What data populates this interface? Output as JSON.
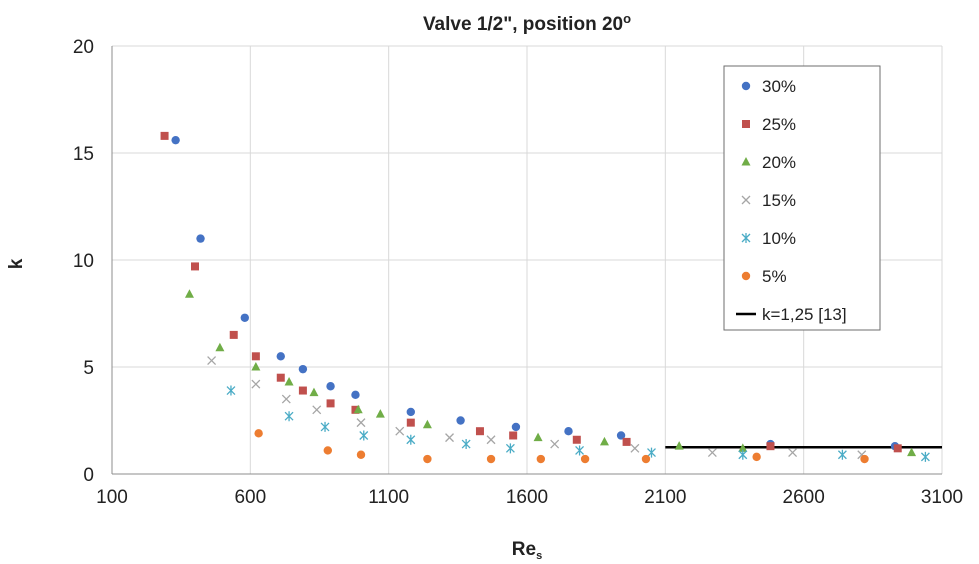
{
  "chart_data": {
    "type": "scatter",
    "title": "Valve 1/2\", position 20",
    "title_superscript": "o",
    "xlabel": "Re",
    "xlabel_subscript": "s",
    "ylabel": "k",
    "xlim": [
      100,
      3100
    ],
    "ylim": [
      0,
      20
    ],
    "xticks": [
      100,
      600,
      1100,
      1600,
      2100,
      2600,
      3100
    ],
    "yticks": [
      0,
      5,
      10,
      15,
      20
    ],
    "grid": true,
    "legend_position": "top-right",
    "series": [
      {
        "name": "30%",
        "marker": "circle",
        "color": "#4472c4",
        "points": [
          [
            330,
            15.6
          ],
          [
            420,
            11.0
          ],
          [
            580,
            7.3
          ],
          [
            710,
            5.5
          ],
          [
            790,
            4.9
          ],
          [
            890,
            4.1
          ],
          [
            980,
            3.7
          ],
          [
            1180,
            2.9
          ],
          [
            1360,
            2.5
          ],
          [
            1560,
            2.2
          ],
          [
            1750,
            2.0
          ],
          [
            1940,
            1.8
          ],
          [
            2480,
            1.4
          ],
          [
            2930,
            1.3
          ]
        ]
      },
      {
        "name": "25%",
        "marker": "square",
        "color": "#c0504d",
        "points": [
          [
            290,
            15.8
          ],
          [
            400,
            9.7
          ],
          [
            540,
            6.5
          ],
          [
            620,
            5.5
          ],
          [
            710,
            4.5
          ],
          [
            790,
            3.9
          ],
          [
            890,
            3.3
          ],
          [
            980,
            3.0
          ],
          [
            1180,
            2.4
          ],
          [
            1430,
            2.0
          ],
          [
            1550,
            1.8
          ],
          [
            1780,
            1.6
          ],
          [
            1960,
            1.5
          ],
          [
            2480,
            1.3
          ],
          [
            2940,
            1.2
          ]
        ]
      },
      {
        "name": "20%",
        "marker": "triangle",
        "color": "#70ad47",
        "points": [
          [
            380,
            8.4
          ],
          [
            490,
            5.9
          ],
          [
            620,
            5.0
          ],
          [
            740,
            4.3
          ],
          [
            830,
            3.8
          ],
          [
            990,
            3.0
          ],
          [
            1070,
            2.8
          ],
          [
            1240,
            2.3
          ],
          [
            1640,
            1.7
          ],
          [
            1880,
            1.5
          ],
          [
            2150,
            1.3
          ],
          [
            2380,
            1.2
          ],
          [
            2990,
            1.0
          ]
        ]
      },
      {
        "name": "15%",
        "marker": "x",
        "color": "#a6a6a6",
        "points": [
          [
            460,
            5.3
          ],
          [
            620,
            4.2
          ],
          [
            730,
            3.5
          ],
          [
            840,
            3.0
          ],
          [
            1000,
            2.4
          ],
          [
            1140,
            2.0
          ],
          [
            1320,
            1.7
          ],
          [
            1470,
            1.6
          ],
          [
            1700,
            1.4
          ],
          [
            1990,
            1.2
          ],
          [
            2270,
            1.0
          ],
          [
            2560,
            1.0
          ],
          [
            2810,
            0.9
          ]
        ]
      },
      {
        "name": "10%",
        "marker": "asterisk",
        "color": "#4bacc6",
        "points": [
          [
            530,
            3.9
          ],
          [
            740,
            2.7
          ],
          [
            870,
            2.2
          ],
          [
            1010,
            1.8
          ],
          [
            1180,
            1.6
          ],
          [
            1380,
            1.4
          ],
          [
            1540,
            1.2
          ],
          [
            1790,
            1.1
          ],
          [
            2050,
            1.0
          ],
          [
            2380,
            0.9
          ],
          [
            2740,
            0.9
          ],
          [
            3040,
            0.8
          ]
        ]
      },
      {
        "name": "5%",
        "marker": "circle",
        "color": "#ed7d31",
        "points": [
          [
            630,
            1.9
          ],
          [
            880,
            1.1
          ],
          [
            1000,
            0.9
          ],
          [
            1240,
            0.7
          ],
          [
            1470,
            0.7
          ],
          [
            1650,
            0.7
          ],
          [
            1810,
            0.7
          ],
          [
            2030,
            0.7
          ],
          [
            2430,
            0.8
          ],
          [
            2820,
            0.7
          ]
        ]
      }
    ],
    "reference_line": {
      "name": "k=1,25 [13]",
      "color": "#000000",
      "y": 1.25,
      "x_range": [
        2100,
        3100
      ]
    }
  }
}
